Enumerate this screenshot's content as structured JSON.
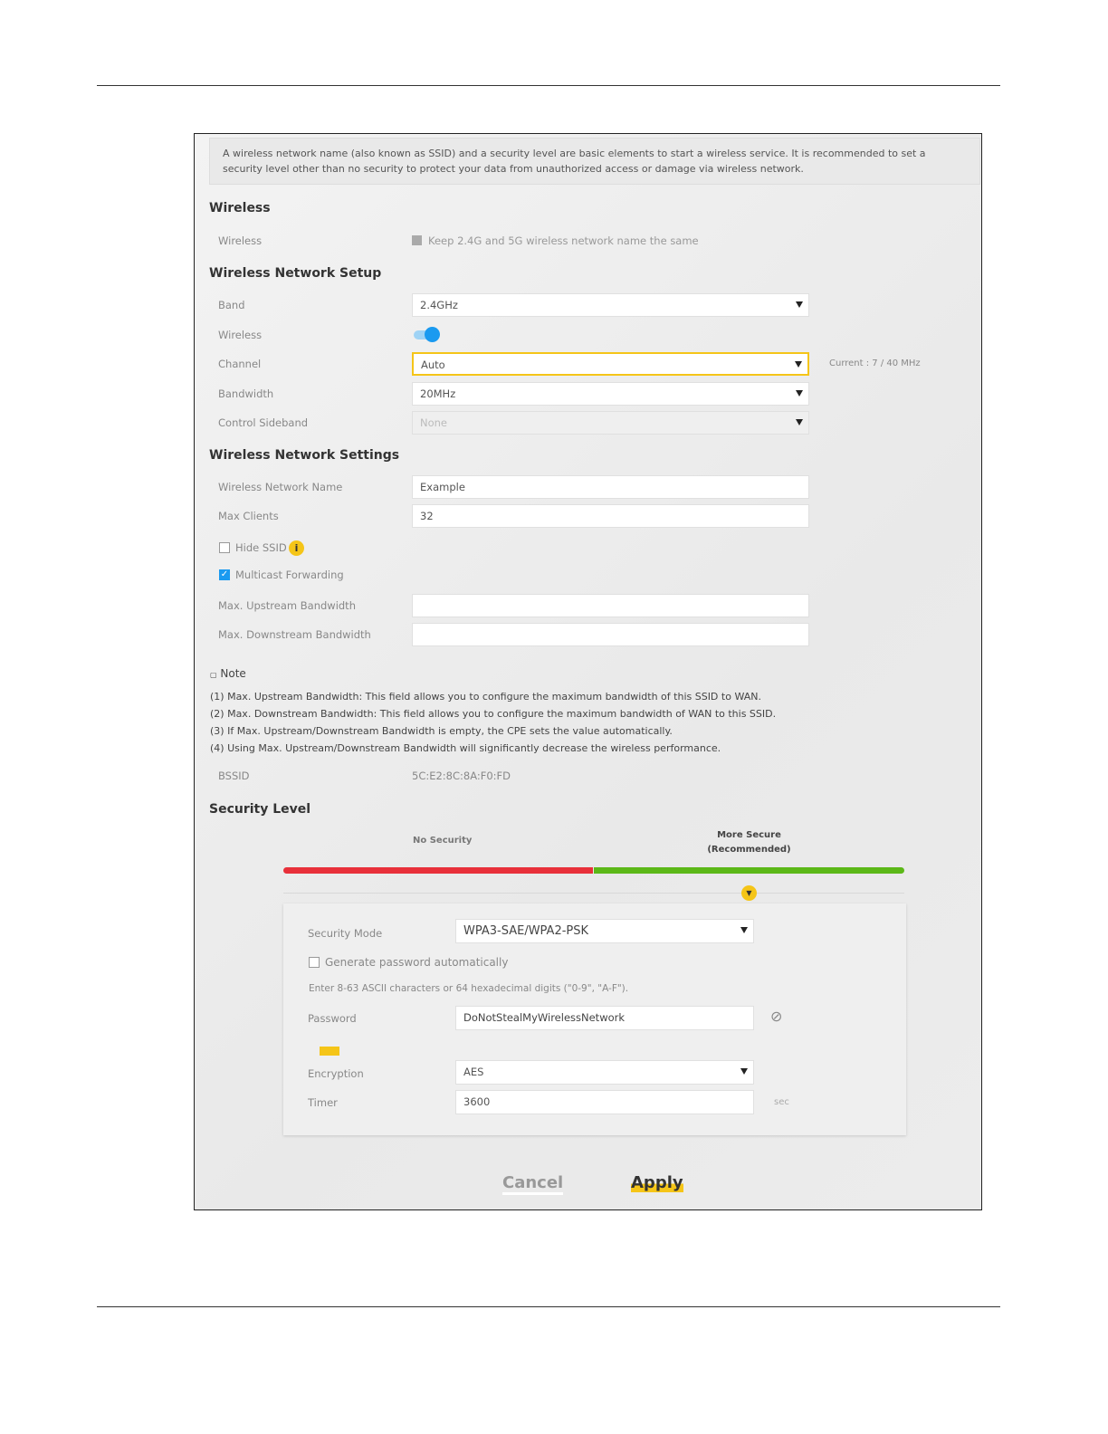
{
  "intro": "A wireless network name (also known as SSID) and a security level are basic elements to start a wireless service. It is recommended to set a security level other than no security to protect your data from unauthorized access or damage via wireless network.",
  "wireless": {
    "heading": "Wireless",
    "label": "Wireless",
    "keep_same_label": "Keep 2.4G and 5G wireless network name the same",
    "keep_same_checked": false
  },
  "setup": {
    "heading": "Wireless Network Setup",
    "band_label": "Band",
    "band": "2.4GHz",
    "wireless_label": "Wireless",
    "wireless_on": true,
    "channel_label": "Channel",
    "channel": "Auto",
    "channel_current": "Current : 7 / 40 MHz",
    "bandwidth_label": "Bandwidth",
    "bandwidth": "20MHz",
    "sideband_label": "Control Sideband",
    "sideband": "None"
  },
  "settings": {
    "heading": "Wireless Network Settings",
    "name_label": "Wireless Network Name",
    "name": "Example",
    "max_clients_label": "Max Clients",
    "max_clients": "32",
    "hide_ssid_label": "Hide SSID",
    "hide_ssid_checked": false,
    "multicast_label": "Multicast Forwarding",
    "multicast_checked": true,
    "up_label": "Max. Upstream Bandwidth",
    "up": "",
    "down_label": "Max. Downstream Bandwidth",
    "down": ""
  },
  "note": {
    "title": "Note",
    "lines": [
      "(1) Max. Upstream Bandwidth: This field allows you to configure the maximum bandwidth of this SSID to WAN.",
      "(2) Max. Downstream Bandwidth: This field allows you to configure the maximum bandwidth of WAN to this SSID.",
      "(3) If Max. Upstream/Downstream Bandwidth is empty, the CPE sets the value automatically.",
      "(4) Using Max. Upstream/Downstream Bandwidth will significantly decrease the wireless performance."
    ]
  },
  "bssid": {
    "label": "BSSID",
    "value": "5C:E2:8C:8A:F0:FD"
  },
  "security": {
    "heading": "Security Level",
    "no_security": "No Security",
    "more_secure": "More Secure",
    "recommended": "(Recommended)",
    "red": "#e8303a",
    "green": "#5cb818",
    "accent": "#f5c518",
    "mode_label": "Security Mode",
    "mode": "WPA3-SAE/WPA2-PSK",
    "gen_label": "Generate password automatically",
    "gen_checked": false,
    "hint": "Enter 8-63 ASCII characters or 64 hexadecimal digits (\"0-9\", \"A-F\").",
    "password_label": "Password",
    "password": "DoNotStealMyWirelessNetwork",
    "encryption_label": "Encryption",
    "encryption": "AES",
    "timer_label": "Timer",
    "timer": "3600",
    "timer_unit": "sec"
  },
  "buttons": {
    "cancel": "Cancel",
    "apply": "Apply"
  }
}
